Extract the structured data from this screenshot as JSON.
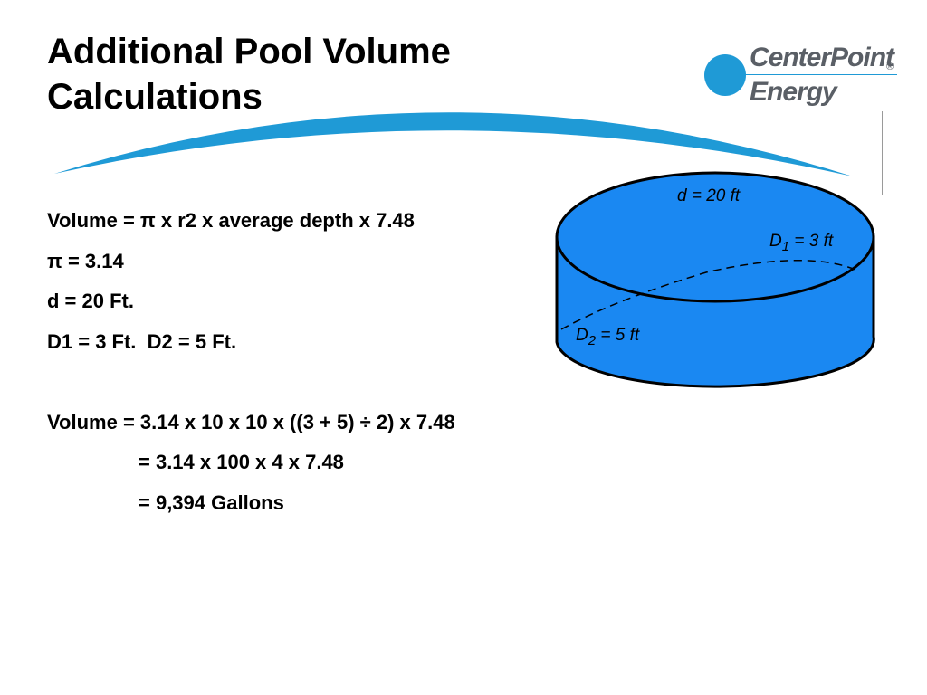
{
  "title": {
    "line1": "Additional Pool Volume",
    "line2": "Calculations"
  },
  "logo": {
    "line1": "CenterPoint",
    "line2": "Energy",
    "reg_mark": "®"
  },
  "content": {
    "lines": [
      "Volume = π x r2 x average depth x 7.48",
      "π = 3.14",
      "d = 20 Ft.",
      "D1 = 3 Ft.  D2 = 5 Ft."
    ],
    "calc": [
      "Volume = 3.14 x 10 x 10 x ((3 + 5) ÷ 2) x 7.48",
      "= 3.14 x 100 x 4 x 7.48",
      "= 9,394 Gallons"
    ]
  },
  "diagram": {
    "diameter_label": "d = 20 ft",
    "d1_prefix": "D",
    "d1_sub": "1",
    "d1_suffix": " = 3 ft",
    "d2_prefix": "D",
    "d2_sub": "2",
    "d2_suffix": " = 5 ft",
    "water_color": "#1a88f2"
  },
  "colors": {
    "swoosh": "#1f9ad6",
    "logo_blue": "#1f9ad6",
    "logo_gray": "#5a5f66"
  }
}
